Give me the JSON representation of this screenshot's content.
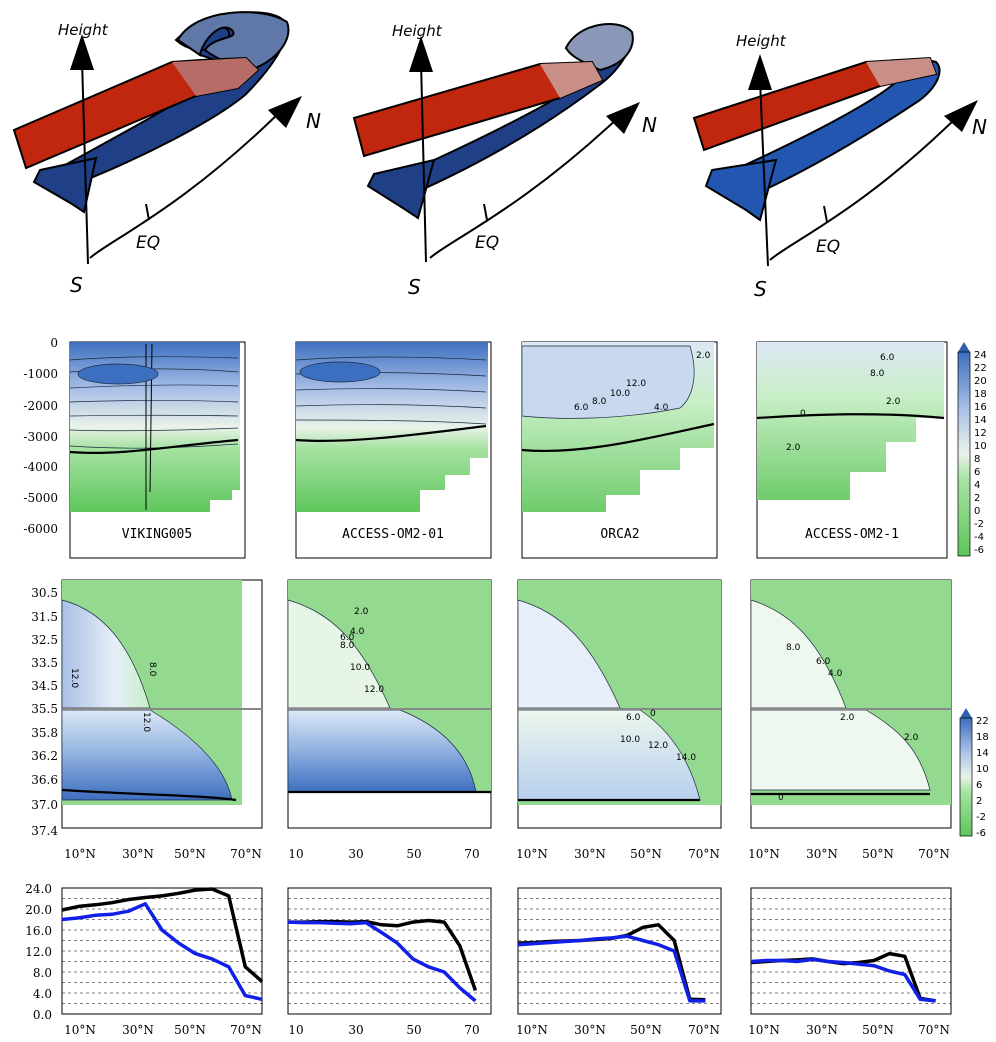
{
  "sketch": {
    "axis_height": "Height",
    "axis_north": "N",
    "axis_south": "S",
    "axis_eq": "EQ"
  },
  "colors": {
    "warm_limb": "#c0270e",
    "cold_limb_dark": "#1f3f86",
    "cold_limb_mid": "#2256b0",
    "green": "#5ec65b",
    "blue": "#3a66b8",
    "line_black": "#000000",
    "line_blue": "#1020e6"
  },
  "chart_data": [
    {
      "type": "heatmap",
      "row": "depth_streamfunction",
      "panels": [
        "VIKING005",
        "ACCESS-OM2-01",
        "ORCA2",
        "ACCESS-OM2-1"
      ],
      "ylim": [
        -6000,
        0
      ],
      "yticks": [
        "0",
        "-1000",
        "-2000",
        "-3000",
        "-4000",
        "-5000",
        "-6000"
      ],
      "contour_labels": {
        "ORCA2": [
          "2.0",
          "12.0",
          "10.0",
          "8.0",
          "6.0",
          "4.0"
        ],
        "ACCESS-OM2-1": [
          "6.0",
          "8.0",
          "2.0",
          "0",
          "2.0"
        ]
      },
      "colorbar": [
        "24",
        "22",
        "20",
        "18",
        "16",
        "14",
        "12",
        "10",
        "8",
        "6",
        "4",
        "2",
        "0",
        "-2",
        "-4",
        "-6"
      ]
    },
    {
      "type": "heatmap",
      "row": "density_streamfunction",
      "panels": [
        "VIKING005",
        "ACCESS-OM2-01",
        "ORCA2",
        "ACCESS-OM2-1"
      ],
      "yticks_upper": [
        "30.5",
        "31.5",
        "32.5",
        "33.5",
        "34.5",
        "35.5"
      ],
      "yticks_lower": [
        "35.8",
        "36.2",
        "36.6",
        "37.0",
        "37.4"
      ],
      "xticks_a": [
        "10°N",
        "30°N",
        "50°N",
        "70°N"
      ],
      "xticks_b": [
        "10",
        "30",
        "50",
        "70"
      ],
      "contour_labels": {
        "VIKING005": [
          "12.0",
          "8.0",
          "12.0"
        ],
        "ACCESS-OM2-01": [
          "2.0",
          "4.0",
          "6.0",
          "8.0",
          "10.0",
          "12.0"
        ],
        "ORCA2": [
          "10.0",
          "12.0",
          "6.0",
          "14.0",
          "0"
        ],
        "ACCESS-OM2-1": [
          "8.0",
          "6.0",
          "4.0",
          "2.0",
          "0",
          "2.0"
        ]
      },
      "colorbar": [
        "22",
        "18",
        "14",
        "10",
        "6",
        "2",
        "-2",
        "-6"
      ]
    },
    {
      "type": "line",
      "row": "overturning_maximum",
      "ylim": [
        0,
        24
      ],
      "yticks": [
        "24.0",
        "20.0",
        "16.0",
        "12.0",
        "8.0",
        "4.0",
        "0.0"
      ],
      "x": [
        10,
        15,
        20,
        25,
        30,
        35,
        40,
        45,
        50,
        55,
        60,
        65,
        70
      ],
      "panels": [
        {
          "name": "VIKING005",
          "xlim": [
            10,
            70
          ],
          "series": [
            {
              "color": "#000000",
              "values": [
                19.8,
                20.5,
                20.8,
                21.2,
                21.8,
                22.2,
                22.5,
                23.0,
                23.6,
                23.8,
                22.5,
                9.0,
                6.2
              ]
            },
            {
              "color": "#1020e6",
              "values": [
                18.0,
                18.3,
                18.8,
                19.0,
                19.6,
                21.0,
                16.0,
                13.5,
                11.5,
                10.5,
                9.0,
                3.5,
                2.8
              ]
            }
          ]
        },
        {
          "name": "ACCESS-OM2-01",
          "xlim": [
            10,
            75
          ],
          "series": [
            {
              "color": "#000000",
              "values": [
                17.5,
                17.5,
                17.6,
                17.6,
                17.5,
                17.6,
                17.0,
                16.8,
                17.5,
                17.8,
                17.5,
                13.0,
                4.5
              ]
            },
            {
              "color": "#1020e6",
              "values": [
                17.5,
                17.4,
                17.4,
                17.3,
                17.2,
                17.4,
                15.5,
                13.5,
                10.5,
                9.0,
                8.0,
                5.0,
                2.5
              ]
            }
          ]
        },
        {
          "name": "ORCA2",
          "xlim": [
            10,
            75
          ],
          "series": [
            {
              "color": "#000000",
              "values": [
                13.5,
                13.6,
                13.8,
                13.9,
                14.0,
                14.2,
                14.4,
                15.0,
                16.5,
                17.0,
                14.0,
                2.8,
                2.7
              ]
            },
            {
              "color": "#1020e6",
              "values": [
                13.2,
                13.4,
                13.6,
                13.8,
                14.0,
                14.3,
                14.5,
                14.8,
                14.0,
                13.2,
                12.0,
                2.5,
                2.5
              ]
            }
          ]
        },
        {
          "name": "ACCESS-OM2-1",
          "xlim": [
            10,
            75
          ],
          "series": [
            {
              "color": "#000000",
              "values": [
                9.8,
                10.0,
                10.2,
                10.3,
                10.5,
                10.0,
                9.6,
                9.8,
                10.2,
                11.5,
                11.0,
                3.0,
                2.5
              ]
            },
            {
              "color": "#1020e6",
              "values": [
                10.0,
                10.2,
                10.2,
                10.0,
                10.4,
                10.0,
                9.8,
                9.5,
                9.2,
                8.2,
                7.5,
                2.8,
                2.5
              ]
            }
          ]
        }
      ]
    }
  ]
}
